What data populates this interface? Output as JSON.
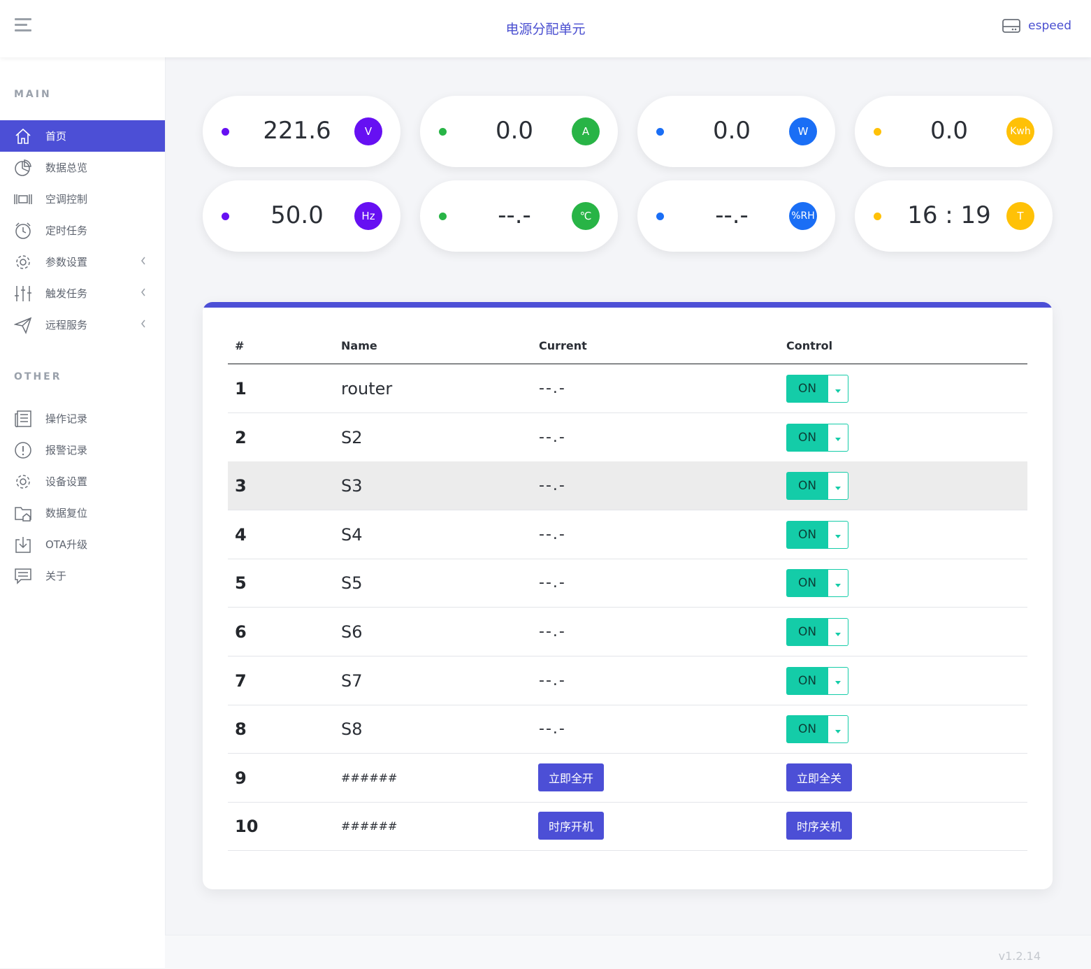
{
  "header": {
    "title": "电源分配单元",
    "user": "espeed",
    "menu_icon": "hamburger-menu-icon",
    "user_icon": "server-drive-icon"
  },
  "sidebar": {
    "main_title": "MAIN",
    "other_title": "OTHER",
    "main_items": [
      {
        "label": "首页",
        "icon": "home-icon",
        "active": true
      },
      {
        "label": "数据总览",
        "icon": "pie-chart-icon"
      },
      {
        "label": "空调控制",
        "icon": "barcode-icon"
      },
      {
        "label": "定时任务",
        "icon": "alarm-clock-icon"
      },
      {
        "label": "参数设置",
        "icon": "gear-icon",
        "expandable": true
      },
      {
        "label": "触发任务",
        "icon": "sliders-icon",
        "expandable": true
      },
      {
        "label": "远程服务",
        "icon": "paper-plane-icon",
        "expandable": true
      }
    ],
    "other_items": [
      {
        "label": "操作记录",
        "icon": "newspaper-icon"
      },
      {
        "label": "报警记录",
        "icon": "alert-circle-icon"
      },
      {
        "label": "设备设置",
        "icon": "gear-icon"
      },
      {
        "label": "数据复位",
        "icon": "folder-home-icon"
      },
      {
        "label": "OTA升级",
        "icon": "download-icon"
      },
      {
        "label": "关于",
        "icon": "message-icon"
      }
    ]
  },
  "stats": [
    {
      "value": "221.6",
      "unit": "V",
      "color": "#6610f2"
    },
    {
      "value": "0.0",
      "unit": "A",
      "color": "#28b446"
    },
    {
      "value": "0.0",
      "unit": "W",
      "color": "#1a6ef5"
    },
    {
      "value": "0.0",
      "unit": "Kwh",
      "color": "#ffc107"
    },
    {
      "value": "50.0",
      "unit": "Hz",
      "color": "#6610f2"
    },
    {
      "value": "--.-",
      "unit": "℃",
      "color": "#28b446"
    },
    {
      "value": "--.-",
      "unit": "%RH",
      "color": "#1a6ef5"
    },
    {
      "value": "16 : 19",
      "unit": "T",
      "color": "#ffc107"
    }
  ],
  "table": {
    "headers": {
      "num": "#",
      "name": "Name",
      "current": "Current",
      "control": "Control"
    },
    "rows": [
      {
        "num": "1",
        "name": "router",
        "current": "--.-",
        "control": "ON"
      },
      {
        "num": "2",
        "name": "S2",
        "current": "--.-",
        "control": "ON"
      },
      {
        "num": "3",
        "name": "S3",
        "current": "--.-",
        "control": "ON",
        "highlight": true
      },
      {
        "num": "4",
        "name": "S4",
        "current": "--.-",
        "control": "ON"
      },
      {
        "num": "5",
        "name": "S5",
        "current": "--.-",
        "control": "ON"
      },
      {
        "num": "6",
        "name": "S6",
        "current": "--.-",
        "control": "ON"
      },
      {
        "num": "7",
        "name": "S7",
        "current": "--.-",
        "control": "ON"
      },
      {
        "num": "8",
        "name": "S8",
        "current": "--.-",
        "control": "ON"
      }
    ],
    "action_rows": [
      {
        "num": "9",
        "name": "######",
        "btn1": "立即全开",
        "btn2": "立即全关"
      },
      {
        "num": "10",
        "name": "######",
        "btn1": "时序开机",
        "btn2": "时序关机"
      }
    ]
  },
  "footer": {
    "version": "v1.2.14"
  },
  "colors": {
    "accent": "#4c4fd6",
    "on_button": "#14cca8"
  }
}
